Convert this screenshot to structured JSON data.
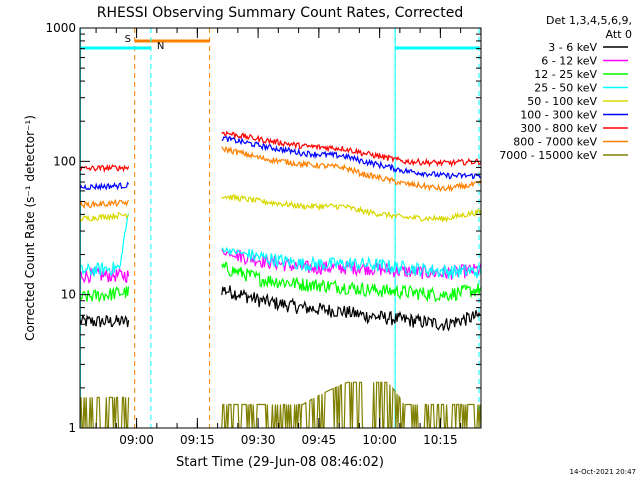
{
  "chart_data": {
    "type": "line",
    "title": "RHESSI Observing Summary Count Rates, Corrected",
    "xlabel": "Start Time (29-Jun-08 08:46:02)",
    "ylabel": "Corrected Count Rate (s⁻¹ detector⁻¹)",
    "ylog": true,
    "ylim": [
      1,
      1000
    ],
    "xlim": [
      "08:46:02",
      "10:25:00"
    ],
    "x_ticks": [
      "09:00",
      "09:15",
      "09:30",
      "09:45",
      "10:00",
      "10:15"
    ],
    "y_ticks": [
      "1",
      "10",
      "100",
      "1000"
    ],
    "legend_header": [
      "Det 1,3,4,5,6,9,",
      "Att 0"
    ],
    "legend_position": "right",
    "series": [
      {
        "name": "3 - 6 keV",
        "color": "#000000",
        "pre": [
          [
            0,
            6.3
          ],
          [
            12,
            6.3
          ]
        ],
        "post": [
          [
            35,
            11
          ],
          [
            45,
            9
          ],
          [
            55,
            8
          ],
          [
            65,
            7.5
          ],
          [
            70,
            7
          ],
          [
            80,
            6.5
          ],
          [
            90,
            6
          ],
          [
            99,
            7
          ]
        ]
      },
      {
        "name": "6 - 12 keV",
        "color": "#ff00ff",
        "pre": [
          [
            0,
            14
          ],
          [
            12,
            14
          ]
        ],
        "post": [
          [
            35,
            21
          ],
          [
            45,
            18
          ],
          [
            55,
            16
          ],
          [
            65,
            16
          ],
          [
            70,
            16
          ],
          [
            80,
            15
          ],
          [
            90,
            14.5
          ],
          [
            99,
            15.5
          ]
        ]
      },
      {
        "name": "12 - 25 keV",
        "color": "#00ff00",
        "pre": [
          [
            0,
            9.5
          ],
          [
            12,
            10.5
          ]
        ],
        "post": [
          [
            35,
            16
          ],
          [
            45,
            13
          ],
          [
            55,
            12
          ],
          [
            65,
            11.5
          ],
          [
            70,
            11
          ],
          [
            80,
            10.5
          ],
          [
            90,
            10
          ],
          [
            99,
            11
          ]
        ]
      },
      {
        "name": "25 - 50 keV",
        "color": "#00ffff",
        "pre": [
          [
            0,
            15
          ],
          [
            10,
            16
          ],
          [
            12,
            40
          ]
        ],
        "post": [
          [
            35,
            22
          ],
          [
            45,
            19
          ],
          [
            55,
            17
          ],
          [
            65,
            17
          ],
          [
            70,
            17
          ],
          [
            80,
            16
          ],
          [
            90,
            15
          ],
          [
            99,
            15
          ]
        ]
      },
      {
        "name": "50 - 100 keV",
        "color": "#d8d800",
        "pre": [
          [
            0,
            37
          ],
          [
            12,
            40
          ]
        ],
        "post": [
          [
            35,
            55
          ],
          [
            45,
            50
          ],
          [
            55,
            46
          ],
          [
            65,
            46
          ],
          [
            70,
            42
          ],
          [
            80,
            38
          ],
          [
            90,
            37
          ],
          [
            99,
            42
          ]
        ]
      },
      {
        "name": "100 - 300 keV",
        "color": "#0000ff",
        "pre": [
          [
            0,
            64
          ],
          [
            12,
            66
          ]
        ],
        "post": [
          [
            35,
            150
          ],
          [
            45,
            130
          ],
          [
            55,
            115
          ],
          [
            65,
            110
          ],
          [
            70,
            100
          ],
          [
            80,
            85
          ],
          [
            90,
            78
          ],
          [
            99,
            78
          ]
        ]
      },
      {
        "name": "300 - 800 keV",
        "color": "#ff0000",
        "pre": [
          [
            0,
            88
          ],
          [
            12,
            90
          ]
        ],
        "post": [
          [
            35,
            165
          ],
          [
            45,
            145
          ],
          [
            55,
            130
          ],
          [
            65,
            125
          ],
          [
            70,
            115
          ],
          [
            80,
            100
          ],
          [
            90,
            97
          ],
          [
            99,
            100
          ]
        ]
      },
      {
        "name": "800 - 7000 keV",
        "color": "#ff8000",
        "pre": [
          [
            0,
            47
          ],
          [
            12,
            49
          ]
        ],
        "post": [
          [
            35,
            125
          ],
          [
            45,
            105
          ],
          [
            55,
            95
          ],
          [
            65,
            90
          ],
          [
            70,
            80
          ],
          [
            80,
            68
          ],
          [
            90,
            62
          ],
          [
            99,
            68
          ]
        ]
      },
      {
        "name": "7000 - 15000 keV",
        "color": "#808000",
        "pre": [
          [
            0,
            1.7
          ],
          [
            12,
            1.7
          ]
        ],
        "post": [
          [
            35,
            1.5
          ],
          [
            55,
            1.5
          ],
          [
            66,
            2.2
          ],
          [
            76,
            2.2
          ],
          [
            80,
            1.5
          ],
          [
            99,
            1.5
          ]
        ]
      }
    ],
    "flags": [
      {
        "label": "S",
        "color": "#ff8000"
      },
      {
        "label": "N",
        "color": "#00ffff"
      }
    ],
    "timestamp": "14-Oct-2021 20:47"
  }
}
